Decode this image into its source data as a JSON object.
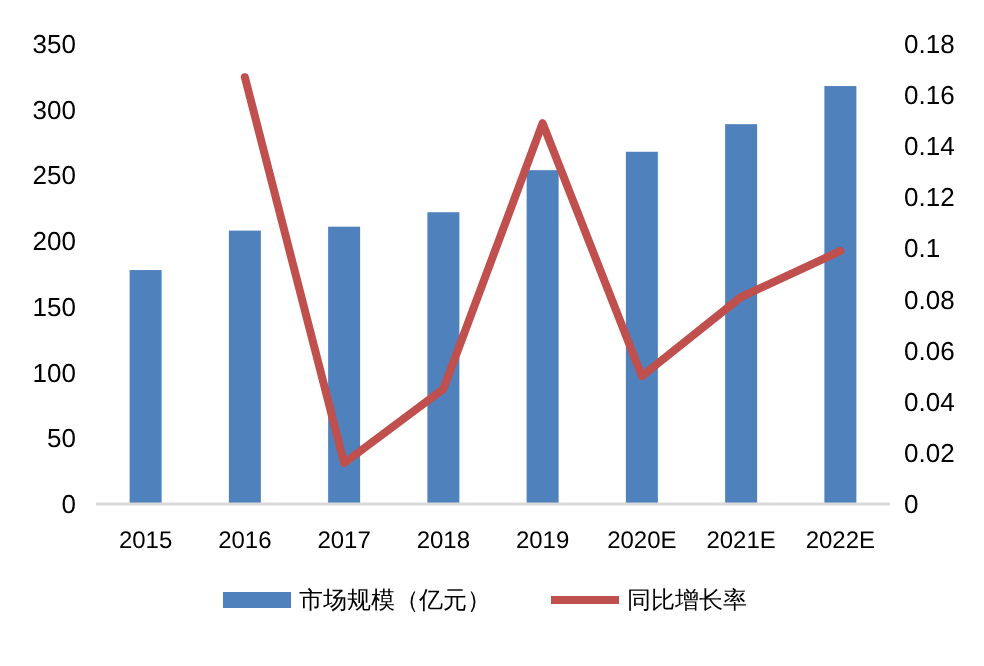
{
  "chart_data": {
    "type": "bar",
    "categories": [
      "2015",
      "2016",
      "2017",
      "2018",
      "2019",
      "2020E",
      "2021E",
      "2022E"
    ],
    "series": [
      {
        "name": "市场规模（亿元）",
        "color": "#4f81bd",
        "values": [
          178,
          208,
          211,
          222,
          254,
          268,
          289,
          318
        ]
      },
      {
        "name": "同比增长率",
        "type": "line",
        "axis": "y2",
        "color": "#c0504d",
        "values": [
          null,
          0.167,
          0.016,
          0.045,
          0.149,
          0.05,
          0.081,
          0.099
        ]
      }
    ],
    "ylim": [
      0,
      350
    ],
    "yticks": [
      0,
      50,
      100,
      150,
      200,
      250,
      300,
      350
    ],
    "y2lim": [
      0,
      0.18
    ],
    "y2ticks": [
      0,
      0.02,
      0.04,
      0.06,
      0.08,
      0.1,
      0.12,
      0.14,
      0.16,
      0.18
    ],
    "legend": "bottom"
  }
}
